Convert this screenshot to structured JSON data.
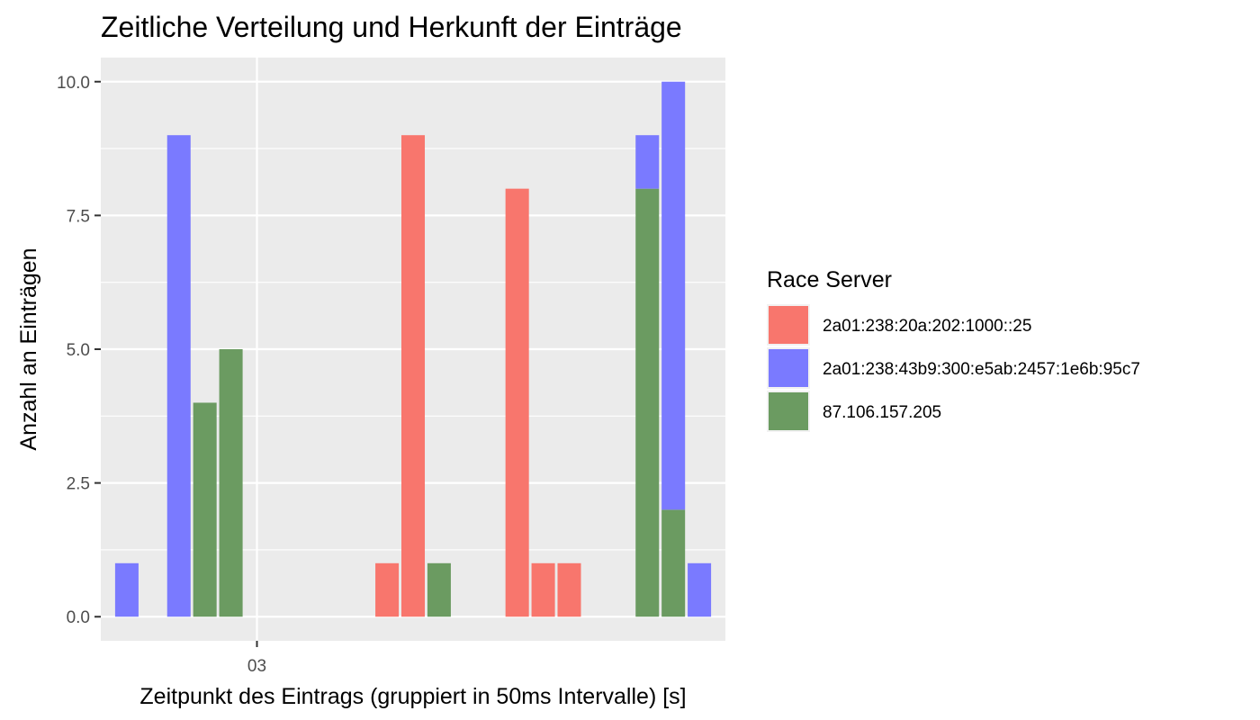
{
  "chart_data": {
    "type": "bar",
    "stacked": true,
    "title": "Zeitliche Verteilung und Herkunft der Einträge",
    "xlabel": "Zeitpunkt des Eintrags (gruppiert in 50ms Intervalle) [s]",
    "ylabel": "Anzahl an Einträgen",
    "ylim": [
      -0.45,
      10.45
    ],
    "yticks": [
      0,
      2.5,
      5,
      7.5,
      10
    ],
    "ytick_labels": [
      "0.0",
      "2.5",
      "5.0",
      "7.5",
      "10.0"
    ],
    "xtick_labels": [
      "03"
    ],
    "xtick_position": 3.0,
    "grid": true,
    "legend": {
      "title": "Race Server",
      "position": "right"
    },
    "series": [
      {
        "name": "2a01:238:20a:202:1000::25",
        "color": "#F8766D"
      },
      {
        "name": "2a01:238:43b9:300:e5ab:2457:1e6b:95c7",
        "color": "#7A7AFF"
      },
      {
        "name": "87.106.157.205",
        "color": "#6B9B61"
      }
    ],
    "bars": [
      {
        "x": 2.0,
        "values": [
          0,
          1,
          0
        ]
      },
      {
        "x": 2.4,
        "values": [
          0,
          9,
          0
        ]
      },
      {
        "x": 2.6,
        "values": [
          0,
          0,
          4
        ]
      },
      {
        "x": 2.8,
        "values": [
          0,
          0,
          5
        ]
      },
      {
        "x": 4.0,
        "values": [
          1,
          0,
          0
        ]
      },
      {
        "x": 4.2,
        "values": [
          9,
          0,
          0
        ]
      },
      {
        "x": 4.4,
        "values": [
          0,
          0,
          1
        ]
      },
      {
        "x": 5.0,
        "values": [
          8,
          0,
          0
        ]
      },
      {
        "x": 5.2,
        "values": [
          1,
          0,
          0
        ]
      },
      {
        "x": 5.4,
        "values": [
          1,
          0,
          0
        ]
      },
      {
        "x": 6.0,
        "values": [
          0,
          1,
          8
        ]
      },
      {
        "x": 6.2,
        "values": [
          0,
          8,
          2
        ]
      },
      {
        "x": 6.4,
        "values": [
          0,
          1,
          0
        ]
      }
    ],
    "xlim": [
      1.8,
      6.6
    ]
  }
}
